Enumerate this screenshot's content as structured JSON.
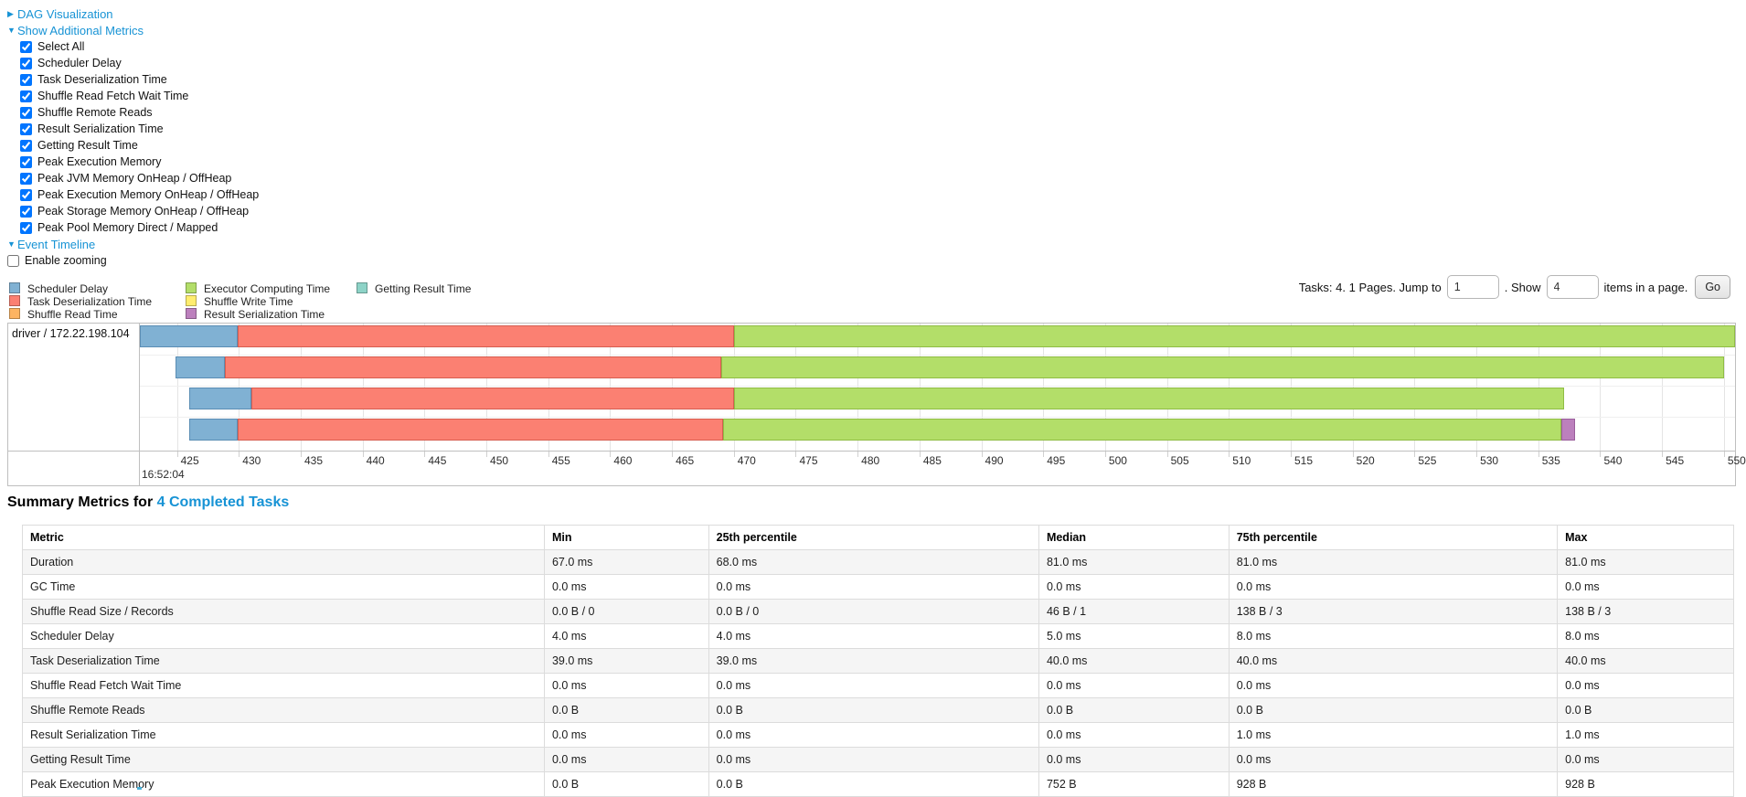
{
  "toggles": {
    "dag_label": "DAG Visualization",
    "metrics_label": "Show Additional Metrics",
    "timeline_label": "Event Timeline"
  },
  "metrics_panel": {
    "items": [
      {
        "label": "Select All",
        "checked": true
      },
      {
        "label": "Scheduler Delay",
        "checked": true
      },
      {
        "label": "Task Deserialization Time",
        "checked": true
      },
      {
        "label": "Shuffle Read Fetch Wait Time",
        "checked": true
      },
      {
        "label": "Shuffle Remote Reads",
        "checked": true
      },
      {
        "label": "Result Serialization Time",
        "checked": true
      },
      {
        "label": "Getting Result Time",
        "checked": true
      },
      {
        "label": "Peak Execution Memory",
        "checked": true
      },
      {
        "label": "Peak JVM Memory OnHeap / OffHeap",
        "checked": true
      },
      {
        "label": "Peak Execution Memory OnHeap / OffHeap",
        "checked": true
      },
      {
        "label": "Peak Storage Memory OnHeap / OffHeap",
        "checked": true
      },
      {
        "label": "Peak Pool Memory Direct / Mapped",
        "checked": true
      }
    ]
  },
  "enable_zooming": {
    "label": "Enable zooming",
    "checked": false
  },
  "pagination": {
    "tasks_text": "Tasks: 4. 1 Pages. Jump to",
    "jump_value": "1",
    "show_label": ". Show",
    "show_value": "4",
    "items_text": "items in a page.",
    "go_label": "Go"
  },
  "chart_data": {
    "type": "timeline-gantt",
    "group_label": "driver / 172.22.198.104",
    "axis": {
      "min": 422.0,
      "max": 550.9,
      "tick_values": [
        425,
        430,
        435,
        440,
        445,
        450,
        455,
        460,
        465,
        470,
        475,
        480,
        485,
        490,
        495,
        500,
        505,
        510,
        515,
        520,
        525,
        530,
        535,
        540,
        545,
        550
      ],
      "major_label": "16:52:04",
      "unit": "ms"
    },
    "legend": [
      {
        "key": "scheduler_delay",
        "name": "Scheduler Delay",
        "color": "#80B1D3",
        "border": "#5a8db4"
      },
      {
        "key": "task_deserialization",
        "name": "Task Deserialization Time",
        "color": "#FB8072",
        "border": "#d65d50"
      },
      {
        "key": "shuffle_read",
        "name": "Shuffle Read Time",
        "color": "#FDB462",
        "border": "#d99440"
      },
      {
        "key": "executor_computing",
        "name": "Executor Computing Time",
        "color": "#B3DE69",
        "border": "#8fbc44"
      },
      {
        "key": "shuffle_write",
        "name": "Shuffle Write Time",
        "color": "#FFED6F",
        "border": "#d9c94a"
      },
      {
        "key": "result_serialization",
        "name": "Result Serialization Time",
        "color": "#BC80BD",
        "border": "#9a5d9b"
      },
      {
        "key": "getting_result",
        "name": "Getting Result Time",
        "color": "#8DD3C7",
        "border": "#66b0a2"
      }
    ],
    "tasks": [
      {
        "segments": [
          {
            "type": "scheduler_delay",
            "start": 422.0,
            "end": 429.9
          },
          {
            "type": "task_deserialization",
            "start": 429.9,
            "end": 470.0
          },
          {
            "type": "executor_computing",
            "start": 470.0,
            "end": 550.9
          }
        ]
      },
      {
        "segments": [
          {
            "type": "scheduler_delay",
            "start": 424.9,
            "end": 428.9
          },
          {
            "type": "task_deserialization",
            "start": 428.9,
            "end": 469.0
          },
          {
            "type": "executor_computing",
            "start": 469.0,
            "end": 550.0
          }
        ]
      },
      {
        "segments": [
          {
            "type": "scheduler_delay",
            "start": 426.0,
            "end": 431.0
          },
          {
            "type": "task_deserialization",
            "start": 431.0,
            "end": 470.0
          },
          {
            "type": "executor_computing",
            "start": 470.0,
            "end": 537.1
          }
        ]
      },
      {
        "segments": [
          {
            "type": "scheduler_delay",
            "start": 426.0,
            "end": 429.9
          },
          {
            "type": "task_deserialization",
            "start": 429.9,
            "end": 469.1
          },
          {
            "type": "executor_computing",
            "start": 469.1,
            "end": 536.9
          },
          {
            "type": "result_serialization",
            "start": 536.9,
            "end": 538.0
          }
        ]
      }
    ]
  },
  "summary": {
    "title_prefix": "Summary Metrics for ",
    "title_link": "4 Completed Tasks",
    "columns": [
      "Metric",
      "Min",
      "25th percentile",
      "Median",
      "75th percentile",
      "Max"
    ],
    "rows": [
      [
        "Duration",
        "67.0 ms",
        "68.0 ms",
        "81.0 ms",
        "81.0 ms",
        "81.0 ms"
      ],
      [
        "GC Time",
        "0.0 ms",
        "0.0 ms",
        "0.0 ms",
        "0.0 ms",
        "0.0 ms"
      ],
      [
        "Shuffle Read Size / Records",
        "0.0 B / 0",
        "0.0 B / 0",
        "46 B / 1",
        "138 B / 3",
        "138 B / 3"
      ],
      [
        "Scheduler Delay",
        "4.0 ms",
        "4.0 ms",
        "5.0 ms",
        "8.0 ms",
        "8.0 ms"
      ],
      [
        "Task Deserialization Time",
        "39.0 ms",
        "39.0 ms",
        "40.0 ms",
        "40.0 ms",
        "40.0 ms"
      ],
      [
        "Shuffle Read Fetch Wait Time",
        "0.0 ms",
        "0.0 ms",
        "0.0 ms",
        "0.0 ms",
        "0.0 ms"
      ],
      [
        "Shuffle Remote Reads",
        "0.0 B",
        "0.0 B",
        "0.0 B",
        "0.0 B",
        "0.0 B"
      ],
      [
        "Result Serialization Time",
        "0.0 ms",
        "0.0 ms",
        "0.0 ms",
        "1.0 ms",
        "1.0 ms"
      ],
      [
        "Getting Result Time",
        "0.0 ms",
        "0.0 ms",
        "0.0 ms",
        "0.0 ms",
        "0.0 ms"
      ],
      [
        "Peak Execution Memory",
        "0.0 B",
        "0.0 B",
        "752 B",
        "928 B",
        "928 B"
      ]
    ]
  }
}
